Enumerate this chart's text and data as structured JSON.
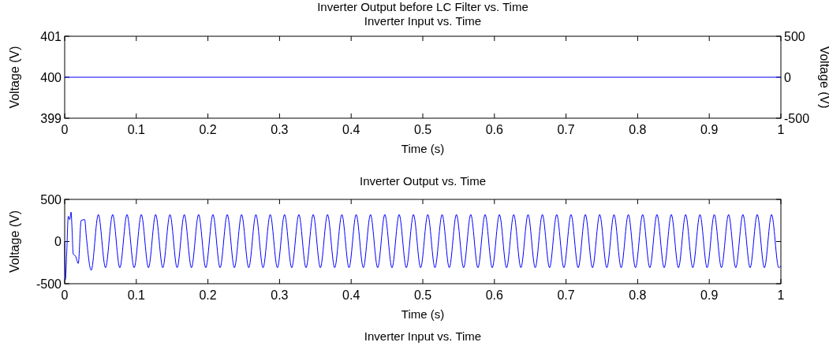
{
  "chart_data": [
    {
      "type": "line",
      "title": "Inverter Output before LC Filter vs. Time",
      "subtitle": "Inverter Input vs. Time",
      "xlabel": "Time (s)",
      "ylabel": "Voltage (V)",
      "y2label": "Voltage (V)",
      "xlim": [
        0,
        1
      ],
      "xticks": [
        0,
        0.1,
        0.2,
        0.3,
        0.4,
        0.5,
        0.6,
        0.7,
        0.8,
        0.9,
        1
      ],
      "ylim": [
        399,
        401
      ],
      "yticks": [
        399,
        400,
        401
      ],
      "y2lim": [
        -500,
        500
      ],
      "y2ticks": [
        -500,
        0,
        500
      ],
      "series": [
        {
          "color": "#0000ff",
          "x": [
            0,
            1
          ],
          "values": [
            400,
            400
          ]
        }
      ]
    },
    {
      "type": "line",
      "title": "Inverter Output vs. Time",
      "xlabel": "Time (s)",
      "ylabel": "Voltage (V)",
      "xlim": [
        0,
        1
      ],
      "xticks": [
        0,
        0.1,
        0.2,
        0.3,
        0.4,
        0.5,
        0.6,
        0.7,
        0.8,
        0.9,
        1
      ],
      "ylim": [
        -500,
        500
      ],
      "yticks": [
        -500,
        0,
        500
      ],
      "annotations": [
        "Inverter Input vs. Time"
      ],
      "series": [
        {
          "color": "#0000ff",
          "x": [
            0,
            0.001,
            0.003,
            0.005,
            0.007,
            0.009,
            0.01,
            0.012,
            0.015,
            0.019,
            0.023,
            0.028,
            0.03,
            0.037,
            0.047,
            0.057,
            0.067,
            0.077,
            0.087,
            0.097,
            0.107,
            0.117,
            0.127,
            0.137,
            0.147,
            0.157,
            0.167,
            0.177,
            0.187,
            0.197,
            0.207,
            0.217,
            0.227,
            0.237,
            0.247,
            0.257,
            0.267,
            0.277,
            0.287,
            0.297,
            0.307,
            0.317,
            0.327,
            0.337,
            0.347,
            0.357,
            0.367,
            0.377,
            0.387,
            0.397,
            0.407,
            0.417,
            0.427,
            0.437,
            0.447,
            0.457,
            0.467,
            0.477,
            0.487,
            0.497,
            0.507,
            0.517,
            0.527,
            0.537,
            0.547,
            0.557,
            0.567,
            0.577,
            0.587,
            0.597,
            0.607,
            0.617,
            0.627,
            0.637,
            0.647,
            0.657,
            0.667,
            0.677,
            0.687,
            0.697,
            0.707,
            0.717,
            0.727,
            0.737,
            0.747,
            0.757,
            0.767,
            0.777,
            0.787,
            0.797,
            0.807,
            0.817,
            0.827,
            0.837,
            0.847,
            0.857,
            0.867,
            0.877,
            0.887,
            0.897,
            0.907,
            0.917,
            0.927,
            0.937,
            0.947,
            0.957,
            0.967,
            0.977,
            0.987,
            0.997,
            1
          ],
          "values": [
            0,
            -450,
            -100,
            300,
            260,
            350,
            200,
            -150,
            -170,
            -260,
            250,
            260,
            80,
            -340,
            320,
            -310,
            320,
            -310,
            320,
            -310,
            320,
            -310,
            320,
            -310,
            320,
            -310,
            320,
            -310,
            320,
            -310,
            320,
            -310,
            320,
            -310,
            320,
            -310,
            320,
            -310,
            320,
            -310,
            320,
            -310,
            320,
            -310,
            320,
            -310,
            320,
            -310,
            320,
            -310,
            320,
            -310,
            320,
            -310,
            320,
            -310,
            320,
            -310,
            320,
            -310,
            320,
            -310,
            320,
            -310,
            320,
            -310,
            320,
            -310,
            320,
            -310,
            320,
            -310,
            320,
            -310,
            320,
            -310,
            320,
            -310,
            320,
            -310,
            320,
            -310,
            320,
            -310,
            320,
            -310,
            320,
            -310,
            320,
            -310,
            320,
            -310,
            320,
            -310,
            320,
            -310,
            320,
            -310,
            320,
            -310,
            320,
            -310,
            320,
            -310,
            320,
            -310,
            320,
            -310,
            320,
            -310,
            -290
          ]
        }
      ]
    }
  ]
}
